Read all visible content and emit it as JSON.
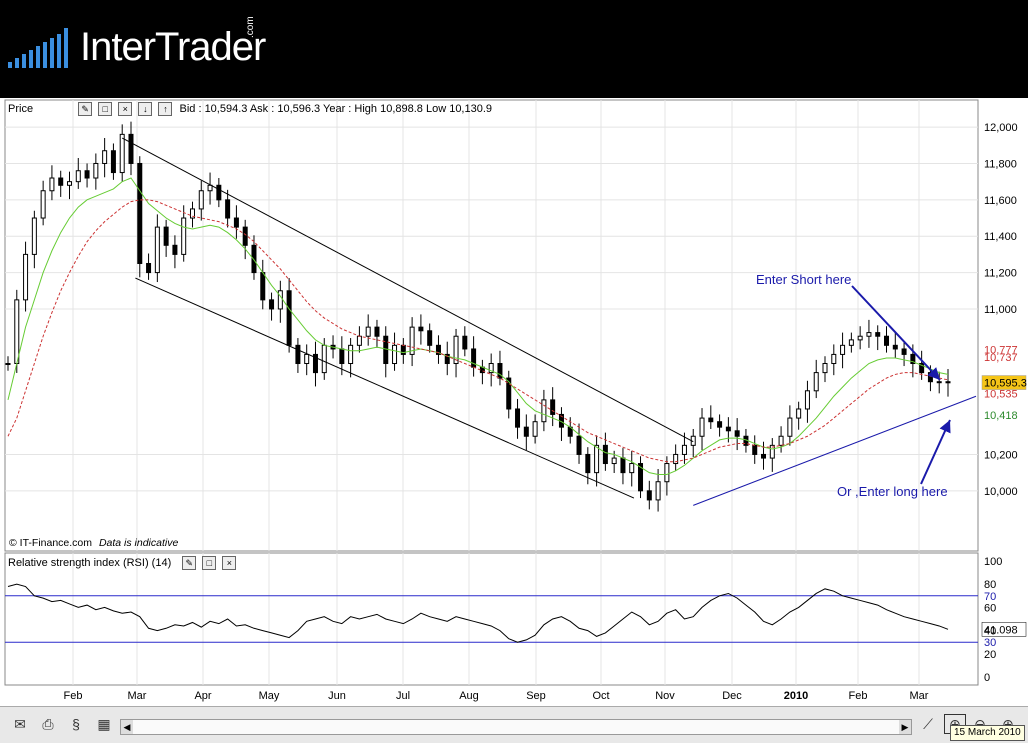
{
  "app": {
    "logo_text": "InterTrader",
    "logo_suffix": ".com"
  },
  "price_panel": {
    "label": "Price",
    "quote_text": "Bid : 10,594.3 Ask : 10,596.3  Year : High 10,898.8 Low 10,130.9",
    "credit": "© IT-Finance.com",
    "credit_note": "Data is indicative",
    "annotation_short": "Enter Short here",
    "annotation_long": "Or ,Enter long here"
  },
  "rsi_panel": {
    "label": "Relative strength index (RSI) (14)",
    "current_value": "41.098"
  },
  "colors": {
    "price_bars": "#000000",
    "ma_green": "#66cc33",
    "ma_red": "#cc3333",
    "annotation": "#1a1aaa",
    "current_price_bg": "#f5c518"
  },
  "chart_data": [
    {
      "type": "line",
      "name": "price",
      "y_ticks": [
        "12,000",
        "11,800",
        "11,600",
        "11,400",
        "11,200",
        "11,000",
        "10,200",
        "10,000"
      ],
      "ylim": [
        9900,
        12050
      ],
      "x_labels": [
        "Feb",
        "Mar",
        "Apr",
        "May",
        "Jun",
        "Jul",
        "Aug",
        "Sep",
        "Oct",
        "Nov",
        "Dec",
        "2010",
        "Feb",
        "Mar"
      ],
      "x": [
        0,
        4,
        8,
        12,
        16,
        20,
        24,
        28,
        32,
        36,
        40,
        44,
        48,
        52,
        56,
        60,
        64,
        68,
        72,
        76,
        80,
        84,
        88,
        92,
        96,
        100,
        104,
        108,
        112,
        116,
        120,
        124,
        128,
        132,
        136,
        140,
        144,
        148,
        152,
        156,
        160,
        164,
        168,
        172,
        176,
        180,
        184,
        188,
        192,
        196,
        200,
        204,
        208,
        212,
        216,
        220,
        224,
        228,
        232,
        236,
        240,
        244,
        248,
        252,
        256,
        260,
        264,
        268,
        272,
        276,
        280,
        284,
        288,
        292,
        296,
        300,
        304,
        308,
        312,
        316,
        320,
        324,
        328,
        332,
        336,
        340,
        344,
        348,
        352,
        356,
        360,
        364,
        368,
        372,
        376,
        380,
        384,
        388,
        392,
        396,
        400,
        404,
        408,
        412,
        416,
        420,
        424,
        428
      ],
      "series": [
        {
          "values": [
            10700,
            11050,
            11300,
            11500,
            11650,
            11720,
            11680,
            11700,
            11760,
            11720,
            11800,
            11870,
            11750,
            11960,
            11800,
            11250,
            11200,
            11450,
            11350,
            11300,
            11500,
            11550,
            11650,
            11680,
            11600,
            11500,
            11450,
            11350,
            11200,
            11050,
            11000,
            11100,
            10800,
            10700,
            10750,
            10650,
            10800,
            10780,
            10700,
            10800,
            10850,
            10900,
            10850,
            10700,
            10800,
            10750,
            10900,
            10880,
            10800,
            10750,
            10700,
            10850,
            10780,
            10680,
            10650,
            10700,
            10620,
            10450,
            10350,
            10300,
            10380,
            10500,
            10420,
            10350,
            10300,
            10200,
            10100,
            10250,
            10150,
            10180,
            10100,
            10150,
            10000,
            9950,
            10050,
            10150,
            10200,
            10250,
            10300,
            10400,
            10380,
            10350,
            10330,
            10300,
            10250,
            10200,
            10180,
            10250,
            10300,
            10400,
            10450,
            10550,
            10650,
            10700,
            10750,
            10800,
            10830,
            10850,
            10870,
            10850,
            10800,
            10780,
            10750,
            10700,
            10650,
            10600,
            10600,
            10594
          ]
        },
        {
          "values": [
            10500,
            10700,
            10900,
            11050,
            11200,
            11320,
            11420,
            11500,
            11560,
            11600,
            11620,
            11640,
            11660,
            11700,
            11720,
            11650,
            11580,
            11540,
            11500,
            11470,
            11450,
            11440,
            11450,
            11460,
            11450,
            11420,
            11380,
            11330,
            11270,
            11200,
            11130,
            11070,
            11000,
            10940,
            10880,
            10830,
            10800,
            10790,
            10780,
            10770,
            10770,
            10780,
            10790,
            10780,
            10770,
            10760,
            10770,
            10780,
            10770,
            10760,
            10740,
            10730,
            10720,
            10700,
            10680,
            10660,
            10640,
            10600,
            10540,
            10480,
            10440,
            10420,
            10400,
            10380,
            10350,
            10310,
            10270,
            10240,
            10210,
            10200,
            10180,
            10160,
            10130,
            10100,
            10090,
            10090,
            10110,
            10140,
            10180,
            10220,
            10250,
            10280,
            10290,
            10290,
            10280,
            10260,
            10240,
            10230,
            10240,
            10260,
            10300,
            10350,
            10400,
            10460,
            10520,
            10570,
            10620,
            10660,
            10700,
            10720,
            10730,
            10730,
            10720,
            10710,
            10690,
            10670,
            10650,
            10640
          ]
        },
        {
          "values": [
            10300,
            10400,
            10550,
            10700,
            10850,
            10980,
            11100,
            11200,
            11290,
            11370,
            11430,
            11480,
            11520,
            11560,
            11590,
            11600,
            11600,
            11590,
            11570,
            11550,
            11530,
            11510,
            11500,
            11490,
            11480,
            11460,
            11440,
            11410,
            11370,
            11320,
            11270,
            11220,
            11160,
            11100,
            11040,
            10990,
            10950,
            10920,
            10890,
            10870,
            10850,
            10840,
            10830,
            10820,
            10810,
            10800,
            10790,
            10780,
            10770,
            10760,
            10740,
            10720,
            10700,
            10680,
            10660,
            10640,
            10620,
            10590,
            10560,
            10530,
            10500,
            10470,
            10440,
            10410,
            10380,
            10350,
            10320,
            10300,
            10280,
            10260,
            10240,
            10220,
            10200,
            10180,
            10170,
            10160,
            10160,
            10170,
            10180,
            10200,
            10220,
            10240,
            10250,
            10260,
            10260,
            10250,
            10240,
            10240,
            10250,
            10260,
            10280,
            10300,
            10330,
            10360,
            10400,
            10440,
            10480,
            10520,
            10560,
            10590,
            10620,
            10640,
            10650,
            10650,
            10640,
            10630,
            10620,
            10610
          ]
        }
      ],
      "price_labels": [
        "10,777",
        "10,737",
        "10,595.3",
        "10,535",
        "10,418"
      ]
    },
    {
      "type": "line",
      "name": "rsi",
      "y_ticks": [
        "100",
        "80",
        "70",
        "60",
        "40",
        "30",
        "20",
        "0"
      ],
      "ylim": [
        0,
        100
      ],
      "levels": [
        70,
        30
      ],
      "series": [
        {
          "values": [
            78,
            80,
            78,
            70,
            68,
            65,
            66,
            63,
            60,
            62,
            58,
            60,
            57,
            55,
            56,
            52,
            42,
            40,
            42,
            45,
            44,
            47,
            43,
            48,
            46,
            50,
            44,
            45,
            42,
            40,
            38,
            36,
            34,
            40,
            48,
            50,
            52,
            48,
            46,
            52,
            50,
            52,
            54,
            50,
            48,
            46,
            50,
            55,
            52,
            50,
            48,
            52,
            50,
            48,
            46,
            44,
            40,
            33,
            30,
            32,
            36,
            45,
            50,
            52,
            48,
            42,
            40,
            35,
            38,
            44,
            50,
            56,
            52,
            45,
            48,
            55,
            58,
            50,
            52,
            60,
            66,
            70,
            72,
            68,
            62,
            56,
            48,
            45,
            50,
            56,
            60,
            66,
            72,
            76,
            74,
            70,
            68,
            66,
            64,
            62,
            58,
            55,
            52,
            50,
            48,
            46,
            44,
            41.098
          ]
        }
      ]
    }
  ]
}
